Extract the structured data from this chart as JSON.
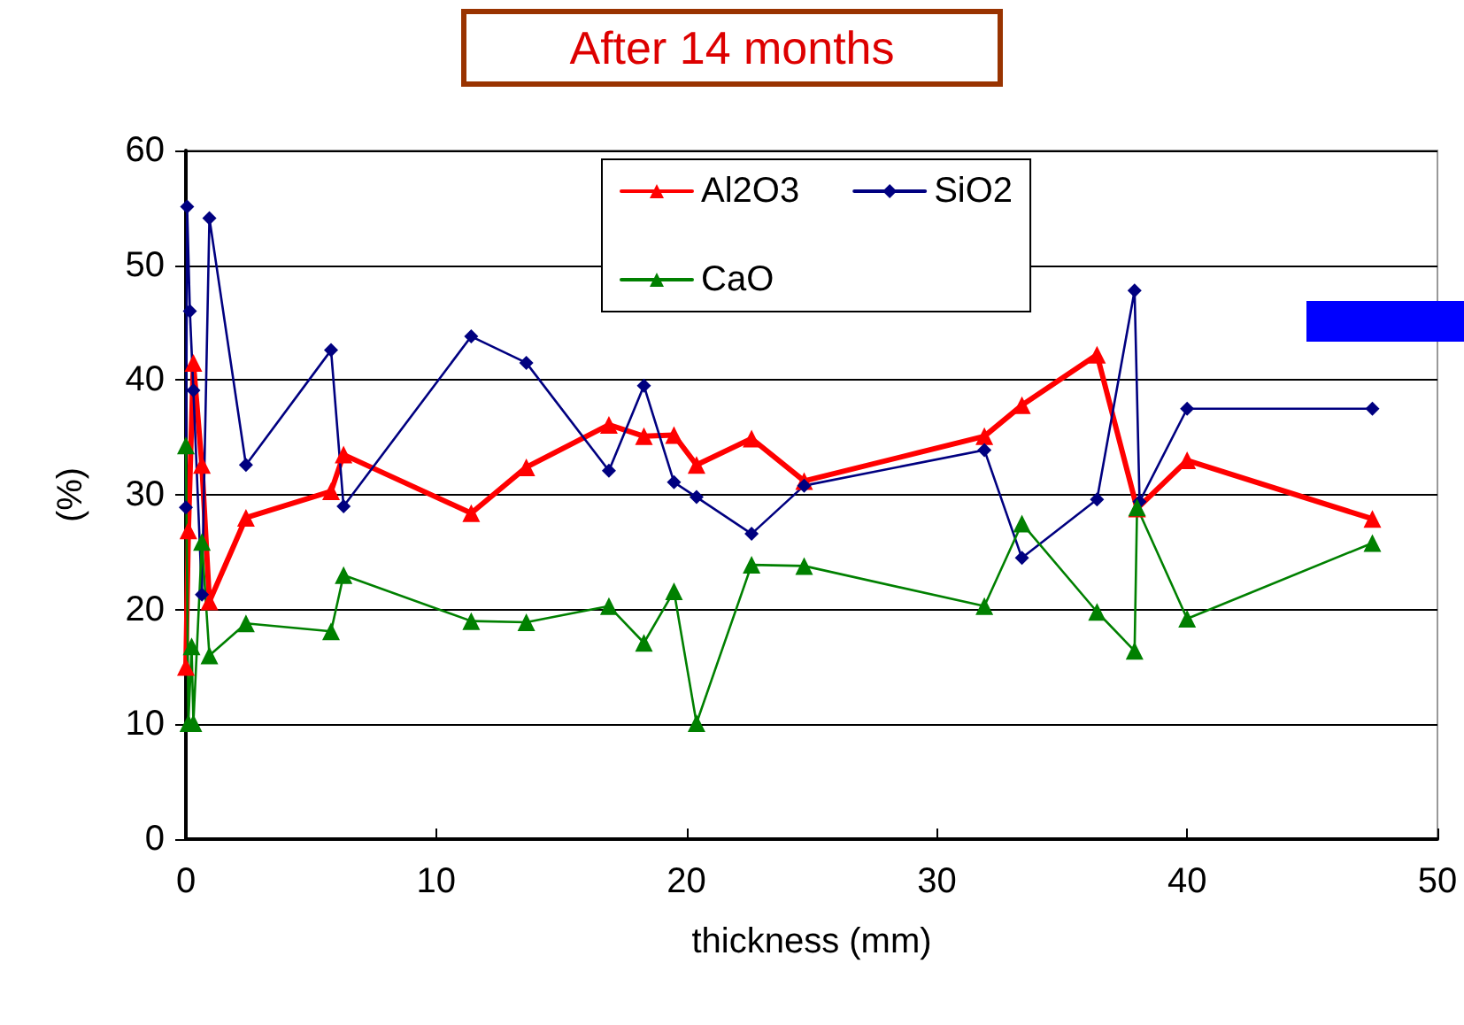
{
  "chart_data": {
    "type": "line",
    "title": "After 14 months",
    "xlabel": "thickness (mm)",
    "ylabel": "(%)",
    "xlim": [
      0,
      50
    ],
    "xticks": [
      0,
      10,
      20,
      30,
      40,
      50
    ],
    "ylim": [
      0,
      60
    ],
    "yticks": [
      0,
      10,
      20,
      30,
      40,
      50,
      60
    ],
    "grid": "y",
    "legend": "top",
    "line_style": "solid",
    "series": [
      {
        "name": "Al2O3",
        "color": "#ff0000",
        "marker": "triangle",
        "x": [
          0,
          0.1,
          0.3,
          0.64,
          0.94,
          2.4,
          5.8,
          6.3,
          11.4,
          13.6,
          16.9,
          18.3,
          19.5,
          20.4,
          22.6,
          24.7,
          31.9,
          33.4,
          36.4,
          38.0,
          40.0,
          47.4
        ],
        "values": [
          15.0,
          26.9,
          41.5,
          32.6,
          20.7,
          28.0,
          30.3,
          33.5,
          28.4,
          32.4,
          36.1,
          35.1,
          35.2,
          32.6,
          34.9,
          31.2,
          35.1,
          37.8,
          42.2,
          28.8,
          33.0,
          27.9
        ]
      },
      {
        "name": "SiO2",
        "color": "#000080",
        "marker": "diamond",
        "x": [
          0,
          0.05,
          0.16,
          0.3,
          0.64,
          0.94,
          2.4,
          5.8,
          6.3,
          11.4,
          13.6,
          16.9,
          18.3,
          19.5,
          20.4,
          22.6,
          24.7,
          31.9,
          33.4,
          36.4,
          37.9,
          38.1,
          40.0,
          47.4
        ],
        "values": [
          28.9,
          55.1,
          46.0,
          39.1,
          21.3,
          54.1,
          32.6,
          42.6,
          29.0,
          43.8,
          41.5,
          32.1,
          39.5,
          31.1,
          29.8,
          26.6,
          30.8,
          33.9,
          24.5,
          29.6,
          47.8,
          29.4,
          37.5,
          37.5
        ]
      },
      {
        "name": "CaO",
        "color": "#008000",
        "marker": "triangle",
        "x": [
          0,
          0.1,
          0.23,
          0.3,
          0.64,
          0.94,
          2.4,
          5.8,
          6.3,
          11.4,
          13.6,
          16.9,
          18.3,
          19.5,
          20.4,
          22.6,
          24.7,
          31.9,
          33.4,
          36.4,
          37.9,
          38.0,
          40.0,
          47.4
        ],
        "values": [
          34.3,
          10.1,
          16.8,
          10.1,
          25.9,
          16.0,
          18.8,
          18.1,
          23.0,
          19.0,
          18.9,
          20.3,
          17.1,
          21.6,
          10.1,
          23.9,
          23.8,
          20.3,
          27.5,
          19.8,
          16.4,
          28.9,
          19.2,
          25.8
        ]
      }
    ]
  }
}
